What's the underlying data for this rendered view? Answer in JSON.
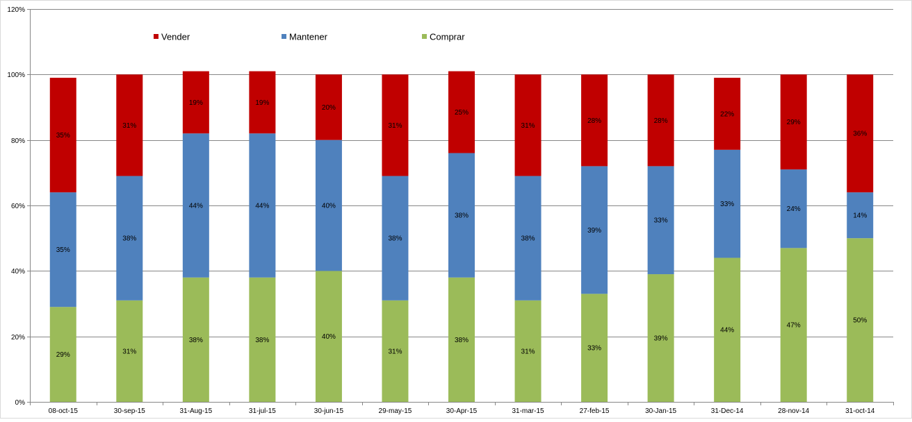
{
  "chart_data": {
    "type": "bar",
    "stacked": true,
    "title": "",
    "xlabel": "",
    "ylabel": "",
    "ylim": [
      0,
      120
    ],
    "y_ticks": [
      "0%",
      "20%",
      "40%",
      "60%",
      "80%",
      "100%",
      "120%"
    ],
    "y_tick_values": [
      0,
      20,
      40,
      60,
      80,
      100,
      120
    ],
    "grid": true,
    "legend_position": "top-left",
    "categories": [
      "08-oct-15",
      "30-sep-15",
      "31-Aug-15",
      "31-jul-15",
      "30-jun-15",
      "29-may-15",
      "30-Apr-15",
      "31-mar-15",
      "27-feb-15",
      "30-Jan-15",
      "31-Dec-14",
      "28-nov-14",
      "31-oct-14"
    ],
    "series": [
      {
        "name": "Comprar",
        "color": "#9bbb59",
        "values": [
          29,
          31,
          38,
          38,
          40,
          31,
          38,
          31,
          33,
          39,
          44,
          47,
          50
        ],
        "labels": [
          "29%",
          "31%",
          "38%",
          "38%",
          "40%",
          "31%",
          "38%",
          "31%",
          "33%",
          "39%",
          "44%",
          "47%",
          "50%"
        ]
      },
      {
        "name": "Mantener",
        "color": "#4f81bd",
        "values": [
          35,
          38,
          44,
          44,
          40,
          38,
          38,
          38,
          39,
          33,
          33,
          24,
          14
        ],
        "labels": [
          "35%",
          "38%",
          "44%",
          "44%",
          "40%",
          "38%",
          "38%",
          "38%",
          "39%",
          "33%",
          "33%",
          "24%",
          "14%"
        ]
      },
      {
        "name": "Vender",
        "color": "#c00000",
        "values": [
          35,
          31,
          19,
          19,
          20,
          31,
          25,
          31,
          28,
          28,
          22,
          29,
          36
        ],
        "labels": [
          "35%",
          "31%",
          "19%",
          "19%",
          "20%",
          "31%",
          "25%",
          "31%",
          "28%",
          "28%",
          "22%",
          "29%",
          "36%"
        ]
      }
    ],
    "legend_order": [
      "Vender",
      "Mantener",
      "Comprar"
    ]
  }
}
